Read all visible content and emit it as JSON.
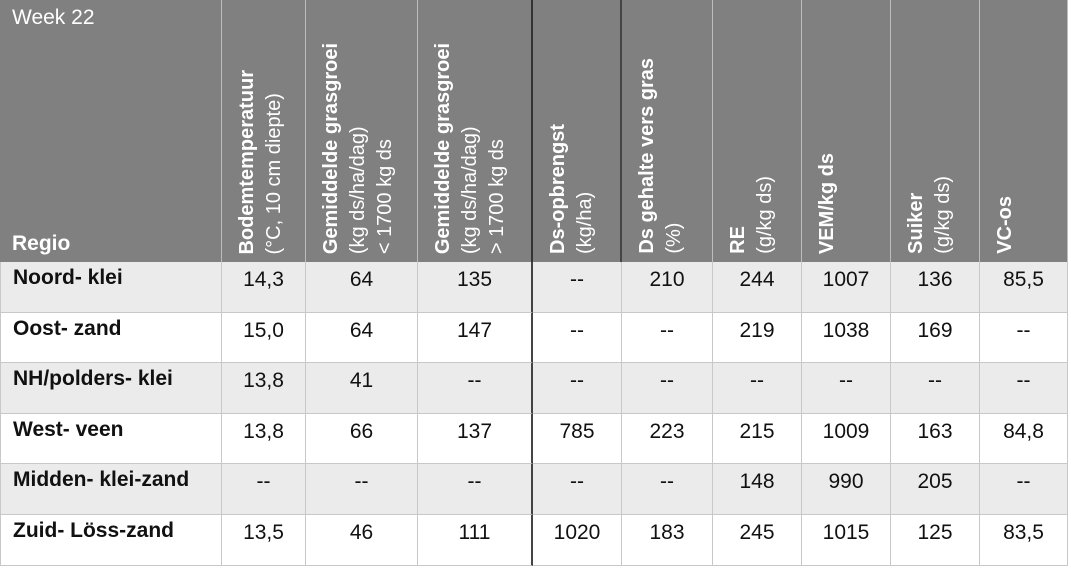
{
  "header": {
    "week": "Week 22",
    "corner": "Regio",
    "columns": [
      {
        "title": "Bodemtemperatuur",
        "lines": [
          "(°C, 10 cm diepte)"
        ]
      },
      {
        "title": "Gemiddelde grasgroei",
        "lines": [
          "(kg ds/ha/dag)",
          "< 1700 kg ds"
        ]
      },
      {
        "title": "Gemiddelde grasgroei",
        "lines": [
          "(kg ds/ha/dag)",
          "> 1700 kg ds"
        ]
      },
      {
        "title": "Ds-opbrengst",
        "lines": [
          "(kg/ha)"
        ]
      },
      {
        "title": "Ds gehalte vers gras",
        "lines": [
          "(%)"
        ]
      },
      {
        "title": "RE",
        "lines": [
          "(g/kg ds)"
        ]
      },
      {
        "title": "VEM/kg ds",
        "lines": []
      },
      {
        "title": "Suiker",
        "lines": [
          "(g/kg ds)"
        ]
      },
      {
        "title": "VC-os",
        "lines": []
      }
    ]
  },
  "table": {
    "rows": [
      [
        "Noord- klei",
        "14,3",
        "64",
        "135",
        "--",
        "210",
        "244",
        "1007",
        "136",
        "85,5"
      ],
      [
        "Oost- zand",
        "15,0",
        "64",
        "147",
        "--",
        "--",
        "219",
        "1038",
        "169",
        "--"
      ],
      [
        "NH/polders- klei",
        "13,8",
        "41",
        "--",
        "--",
        "--",
        "--",
        "--",
        "--",
        "--"
      ],
      [
        "West- veen",
        "13,8",
        "66",
        "137",
        "785",
        "223",
        "215",
        "1009",
        "163",
        "84,8"
      ],
      [
        "Midden- klei-zand",
        "--",
        "--",
        "--",
        "--",
        "--",
        "148",
        "990",
        "205",
        "--"
      ],
      [
        "Zuid- Löss-zand",
        "13,5",
        "46",
        "111",
        "1020",
        "183",
        "245",
        "1015",
        "125",
        "83,5"
      ]
    ]
  }
}
